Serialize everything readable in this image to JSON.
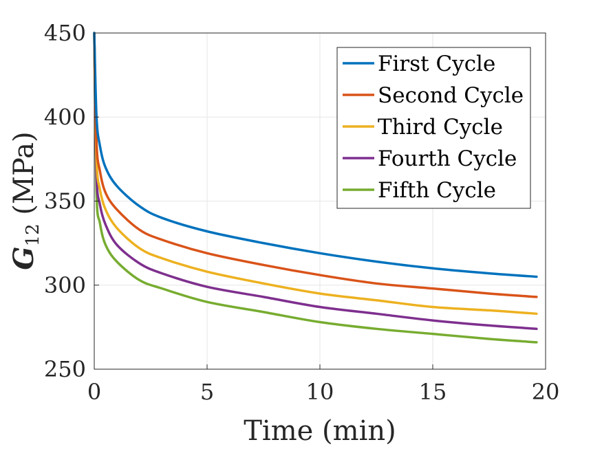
{
  "chart_data": {
    "type": "line",
    "title": "",
    "xlabel": "Time (min)",
    "ylabel": {
      "symbol": "G",
      "subscript": "12",
      "unit": " (MPa)"
    },
    "xlim": [
      0,
      20
    ],
    "ylim": [
      250,
      450
    ],
    "xticks": [
      0,
      5,
      10,
      15,
      20
    ],
    "yticks": [
      250,
      300,
      350,
      400,
      450
    ],
    "grid": true,
    "legend_position": "top-right",
    "x": [
      0,
      0.1,
      0.25,
      0.5,
      1,
      2,
      3,
      5,
      7.5,
      10,
      12.5,
      15,
      17.5,
      19.6
    ],
    "series": [
      {
        "name": "First Cycle",
        "color": "#0072BD",
        "values": [
          450,
          400,
          383,
          370,
          359,
          347,
          340,
          332,
          325,
          319,
          314,
          310,
          307,
          305
        ]
      },
      {
        "name": "Second Cycle",
        "color": "#D95319",
        "values": [
          450,
          385,
          368,
          355,
          345,
          333,
          327,
          319,
          312,
          306,
          301,
          298,
          295,
          293
        ]
      },
      {
        "name": "Third Cycle",
        "color": "#EDB120",
        "values": [
          450,
          375,
          357,
          345,
          334,
          322,
          316,
          308,
          301,
          295,
          291,
          287,
          285,
          283
        ]
      },
      {
        "name": "Fourth Cycle",
        "color": "#7E2F8E",
        "values": [
          450,
          366,
          348,
          336,
          324,
          313,
          307,
          299,
          293,
          287,
          283,
          279,
          276,
          274
        ]
      },
      {
        "name": "Fifth Cycle",
        "color": "#77AC30",
        "values": [
          450,
          355,
          337,
          324,
          314,
          303,
          298,
          290,
          284,
          278,
          274,
          271,
          268,
          266
        ]
      }
    ]
  }
}
